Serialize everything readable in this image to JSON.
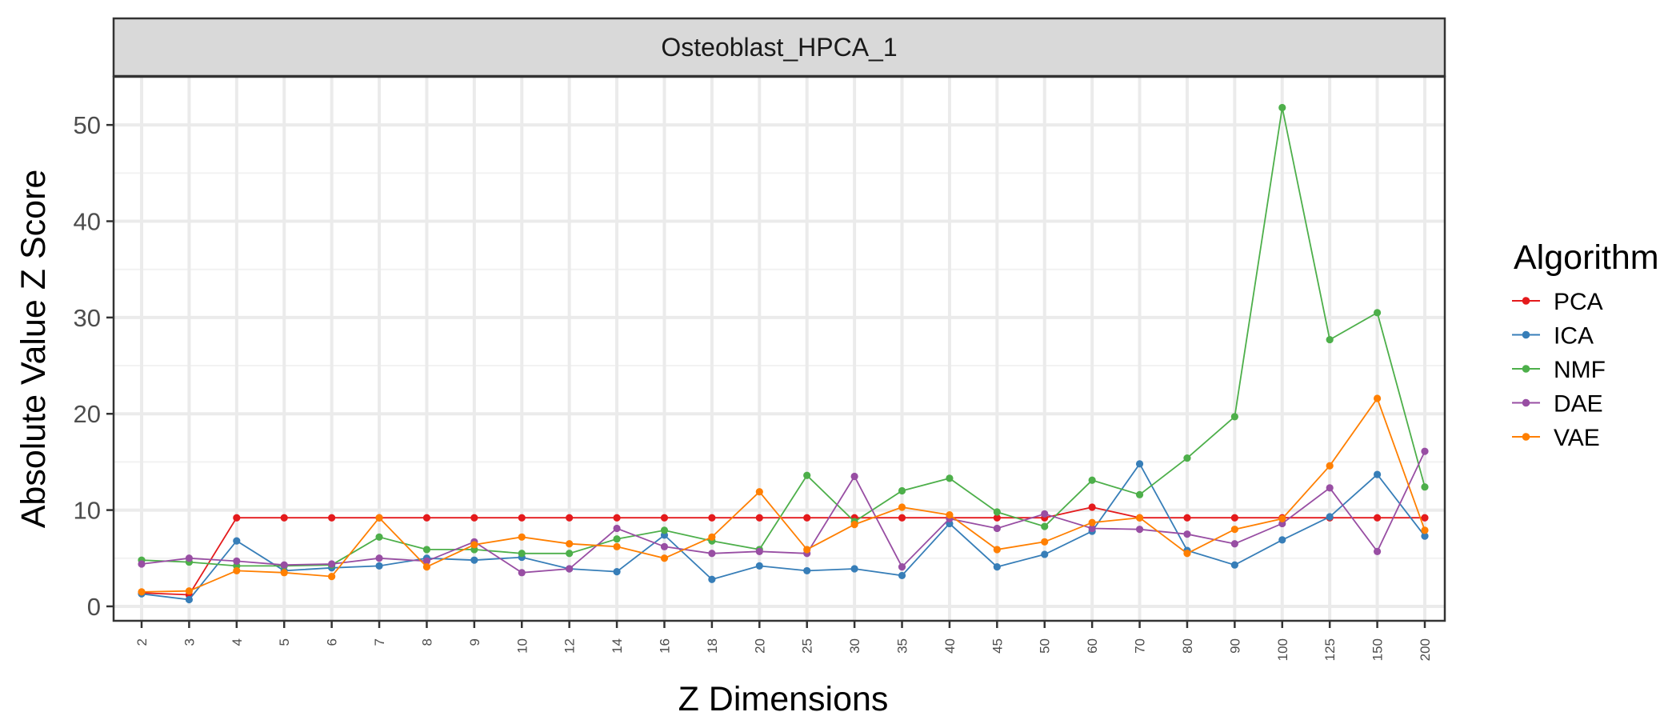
{
  "chart_data": {
    "type": "line",
    "facet_title": "Osteoblast_HPCA_1",
    "xlabel": "Z Dimensions",
    "ylabel": "Absolute Value Z Score",
    "ylim": [
      -1.5,
      55
    ],
    "yticks": [
      0,
      10,
      20,
      30,
      40,
      50
    ],
    "grid": true,
    "legend_title": "Algorithm",
    "legend_position": "right",
    "categories": [
      "2",
      "3",
      "4",
      "5",
      "6",
      "7",
      "8",
      "9",
      "10",
      "12",
      "14",
      "16",
      "18",
      "20",
      "25",
      "30",
      "35",
      "40",
      "45",
      "50",
      "60",
      "70",
      "80",
      "90",
      "100",
      "125",
      "150",
      "200"
    ],
    "series": [
      {
        "name": "PCA",
        "color": "#E41A1C",
        "values": [
          1.4,
          1.2,
          9.2,
          9.2,
          9.2,
          9.2,
          9.2,
          9.2,
          9.2,
          9.2,
          9.2,
          9.2,
          9.2,
          9.2,
          9.2,
          9.2,
          9.2,
          9.2,
          9.2,
          9.2,
          10.3,
          9.2,
          9.2,
          9.2,
          9.2,
          9.2,
          9.2,
          9.2
        ]
      },
      {
        "name": "ICA",
        "color": "#377EB8",
        "values": [
          1.3,
          0.7,
          6.8,
          3.7,
          4.0,
          4.2,
          5.0,
          4.8,
          5.1,
          3.9,
          3.6,
          7.4,
          2.8,
          4.2,
          3.7,
          3.9,
          3.2,
          8.6,
          4.1,
          5.4,
          7.8,
          14.8,
          5.8,
          4.3,
          6.9,
          9.3,
          13.7,
          7.3
        ]
      },
      {
        "name": "NMF",
        "color": "#4DAF4A",
        "values": [
          4.8,
          4.6,
          4.2,
          4.2,
          4.3,
          7.2,
          5.9,
          5.9,
          5.5,
          5.5,
          7.0,
          7.9,
          6.8,
          5.9,
          13.6,
          8.8,
          12.0,
          13.3,
          9.8,
          8.3,
          13.1,
          11.6,
          15.4,
          19.7,
          51.8,
          27.7,
          30.5,
          12.4
        ]
      },
      {
        "name": "DAE",
        "color": "#984EA3",
        "values": [
          4.4,
          5.0,
          4.7,
          4.3,
          4.4,
          5.0,
          4.7,
          6.7,
          3.5,
          3.9,
          8.1,
          6.2,
          5.5,
          5.7,
          5.5,
          13.5,
          4.1,
          9.1,
          8.1,
          9.6,
          8.1,
          8.0,
          7.5,
          6.5,
          8.6,
          12.3,
          5.7,
          16.1
        ]
      },
      {
        "name": "VAE",
        "color": "#FF7F00",
        "values": [
          1.5,
          1.6,
          3.7,
          3.5,
          3.1,
          9.2,
          4.1,
          6.4,
          7.2,
          6.5,
          6.2,
          5.0,
          7.2,
          11.9,
          5.9,
          8.5,
          10.3,
          9.5,
          5.9,
          6.7,
          8.7,
          9.2,
          5.5,
          8.0,
          9.1,
          14.6,
          21.6,
          7.9
        ]
      }
    ]
  }
}
